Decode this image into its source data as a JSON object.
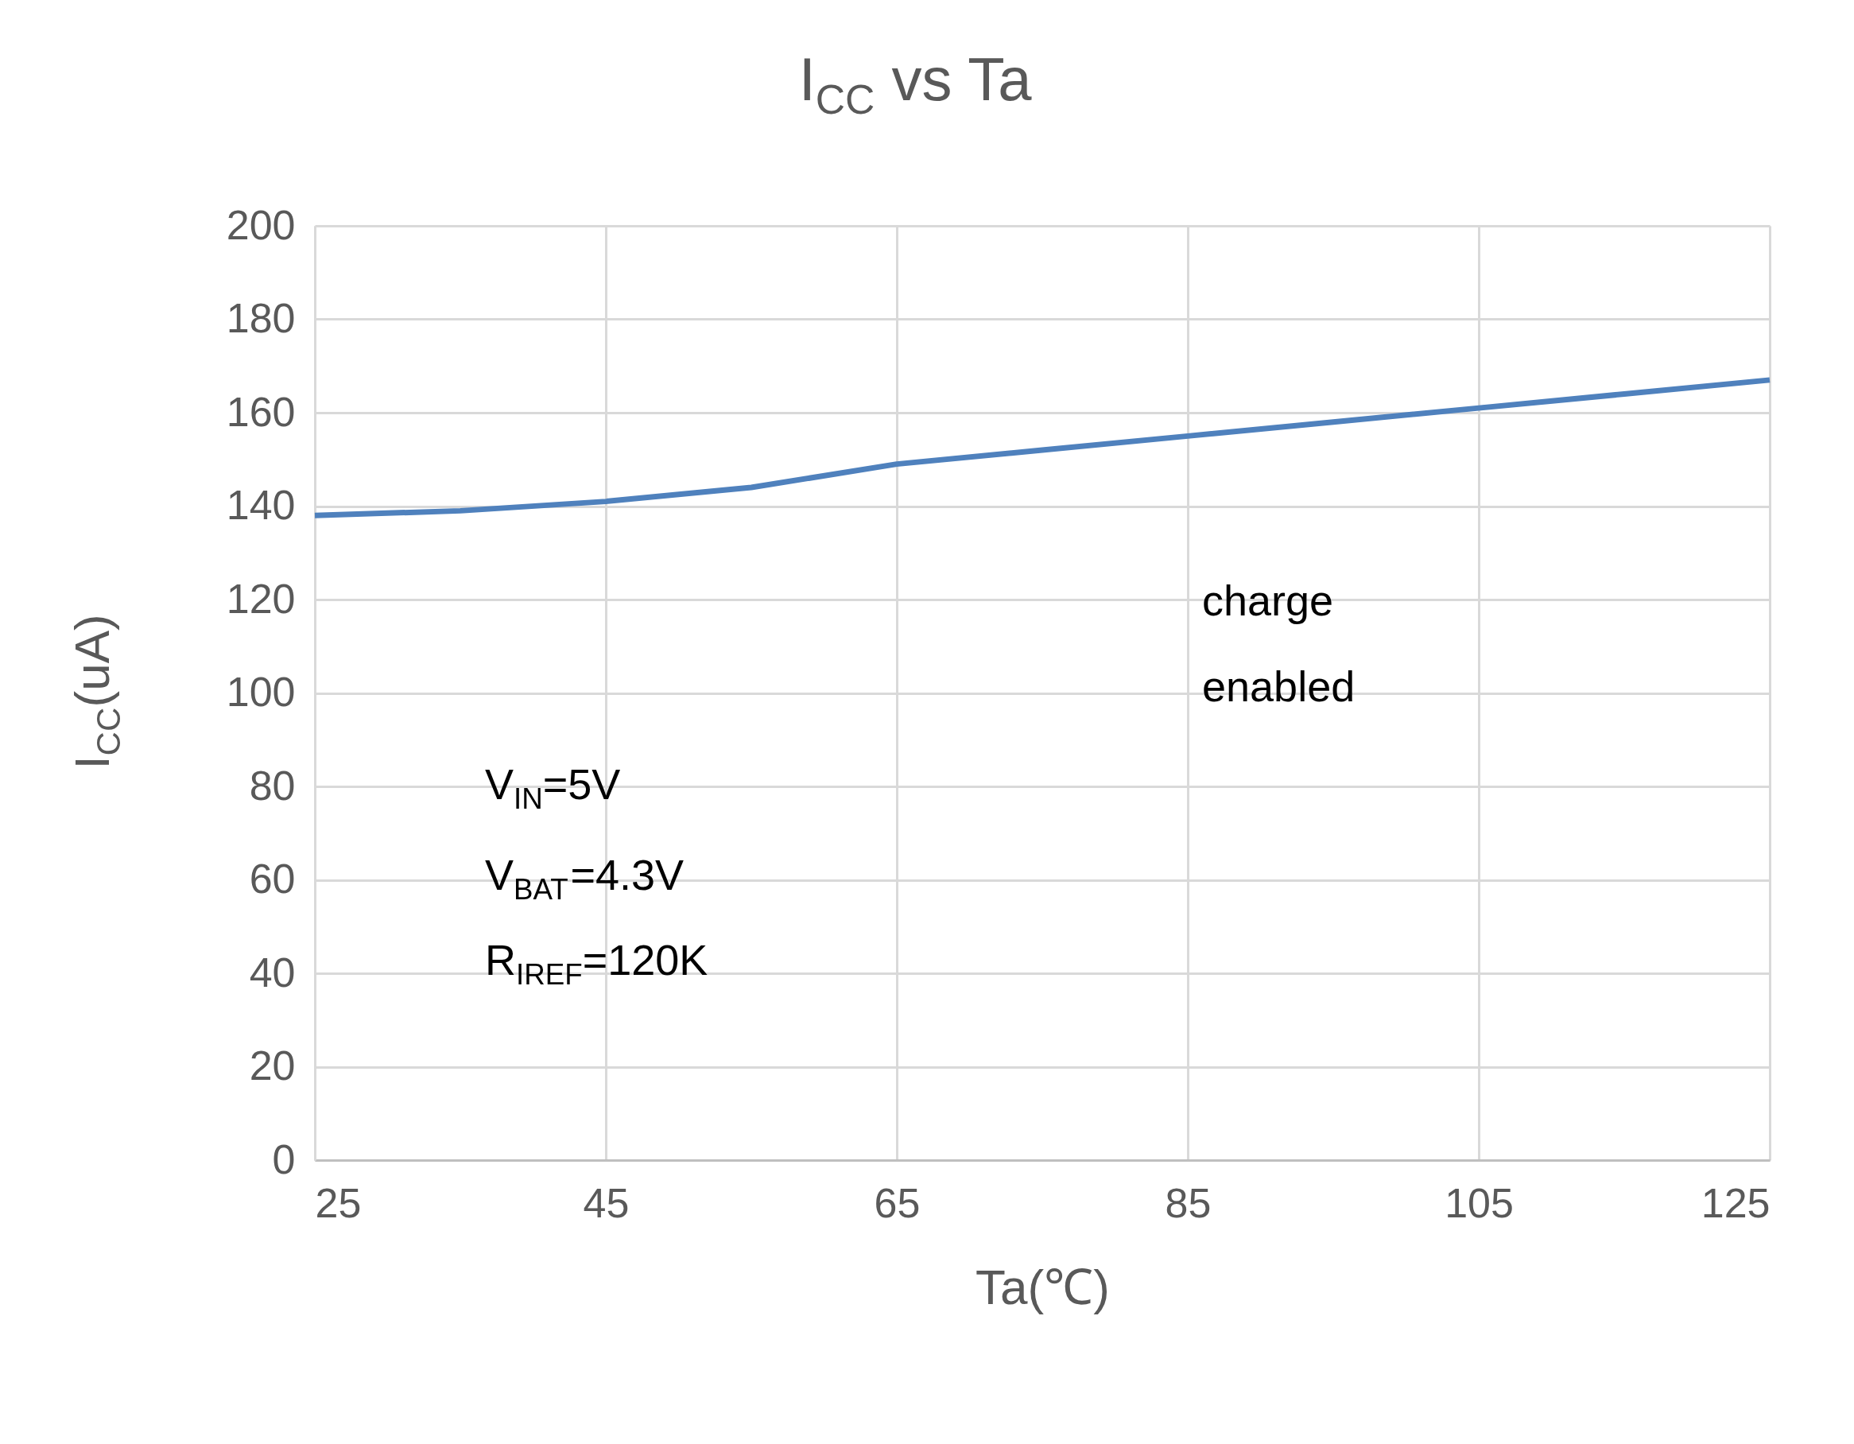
{
  "chart_data": {
    "type": "line",
    "title": "I$_{CC}$ vs Ta",
    "xlabel": "Ta(℃)",
    "ylabel": "I$_{CC}$(uA)",
    "x": [
      25,
      35,
      45,
      55,
      65,
      75,
      85,
      95,
      105,
      115,
      125
    ],
    "series": [
      {
        "color": "#4f81bd",
        "values": [
          138,
          139,
          141,
          144,
          149,
          152,
          155,
          158,
          161,
          164,
          167
        ]
      }
    ],
    "xlim": [
      25,
      125
    ],
    "xticks": [
      25,
      45,
      65,
      85,
      105,
      125
    ],
    "ylim": [
      0,
      200
    ],
    "yticks": [
      0,
      20,
      40,
      60,
      80,
      100,
      120,
      140,
      160,
      180,
      200
    ],
    "grid": true,
    "legend": false,
    "marker": "none",
    "line_style": "solid",
    "annotations": [
      "charge enabled",
      "V$_{IN}$=5V",
      "V$_{BAT}$=4.3V",
      "R$_{IREF}$=120K"
    ]
  }
}
